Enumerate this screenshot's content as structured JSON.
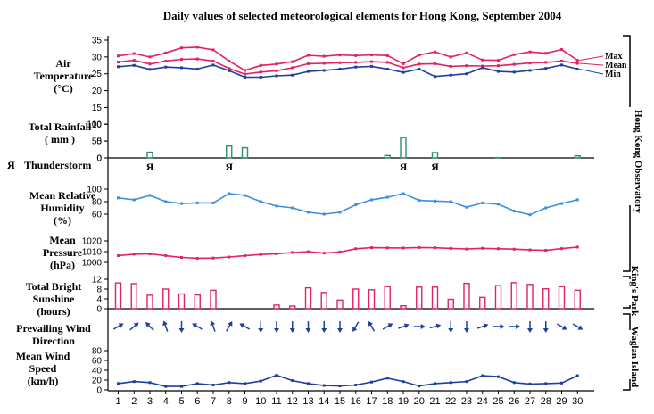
{
  "chart_data": {
    "type": "line",
    "title": "Daily values of selected meteorological elements for Hong Kong, September 2004",
    "x": [
      1,
      2,
      3,
      4,
      5,
      6,
      7,
      8,
      9,
      10,
      11,
      12,
      13,
      14,
      15,
      16,
      17,
      18,
      19,
      20,
      21,
      22,
      23,
      24,
      25,
      26,
      27,
      28,
      29,
      30
    ],
    "panels": {
      "air_temperature": {
        "label": [
          "Air",
          "Temperature",
          "(°C)"
        ],
        "ylim": [
          0,
          35
        ],
        "ticks": [
          0,
          5,
          10,
          15,
          20,
          25,
          30,
          35
        ],
        "series": [
          {
            "name": "Max",
            "color": "#e0245e",
            "values": [
              30.3,
              31.0,
              30.0,
              31.2,
              32.7,
              32.9,
              32.1,
              28.8,
              26.0,
              27.5,
              27.9,
              28.6,
              30.5,
              30.2,
              30.6,
              30.4,
              30.6,
              30.4,
              28.0,
              30.6,
              31.5,
              30.0,
              31.2,
              29.1,
              29.0,
              30.7,
              31.5,
              31.1,
              32.2,
              29.0
            ]
          },
          {
            "name": "Mean",
            "color": "#e0245e",
            "values": [
              28.5,
              29.0,
              27.9,
              28.8,
              29.3,
              29.4,
              28.8,
              26.6,
              24.9,
              25.5,
              25.9,
              26.8,
              28.0,
              28.1,
              28.3,
              28.4,
              28.6,
              28.4,
              26.8,
              27.9,
              28.0,
              27.2,
              27.4,
              27.3,
              27.4,
              27.8,
              28.2,
              28.4,
              28.8,
              28.1
            ]
          },
          {
            "name": "Min",
            "color": "#1f3f9f",
            "values": [
              27.1,
              27.5,
              26.3,
              27.0,
              26.8,
              26.4,
              27.6,
              25.9,
              24.0,
              24.0,
              24.4,
              24.6,
              25.7,
              26.0,
              26.4,
              27.0,
              27.2,
              26.4,
              25.4,
              26.4,
              24.2,
              24.6,
              25.0,
              26.8,
              25.7,
              25.5,
              26.0,
              26.6,
              27.6,
              26.4
            ]
          }
        ]
      },
      "total_rainfall": {
        "label": [
          "Total Rainfall",
          "( mm )"
        ],
        "ylim": [
          0,
          100
        ],
        "ticks": [
          0,
          50,
          100
        ],
        "color": "#2f8f6f",
        "values": [
          0,
          0,
          17,
          0,
          0,
          0,
          0,
          35,
          30,
          0,
          0,
          0,
          0,
          0,
          0,
          0,
          0,
          7,
          60,
          0,
          16,
          0,
          0,
          0,
          1,
          0,
          0,
          0,
          0,
          6
        ]
      },
      "thunderstorm": {
        "label": "Thunderstorm",
        "symbol": "Я",
        "days": [
          3,
          8,
          19,
          21
        ]
      },
      "mean_relative_humidity": {
        "label": [
          "Mean Relative",
          "Humidity",
          "(%)"
        ],
        "ylim": [
          0,
          100
        ],
        "ticks": [
          60,
          80,
          100
        ],
        "color": "#3a8fe0",
        "values": [
          86,
          83,
          90,
          80,
          77,
          78,
          78,
          93,
          90,
          80,
          73,
          70,
          63,
          60,
          63,
          75,
          83,
          87,
          93,
          82,
          81,
          80,
          71,
          78,
          76,
          65,
          59,
          70,
          77,
          83
        ]
      },
      "mean_pressure": {
        "label": [
          "Mean",
          "Pressure",
          "(hPa)"
        ],
        "ylim": [
          1000,
          1020
        ],
        "ticks": [
          1000,
          1010,
          1020
        ],
        "color": "#e0245e",
        "values": [
          1006.3,
          1007.6,
          1007.9,
          1006.2,
          1004.6,
          1003.8,
          1004.0,
          1005.0,
          1006.2,
          1007.3,
          1008.0,
          1009.2,
          1009.9,
          1008.6,
          1009.7,
          1012.7,
          1013.7,
          1013.5,
          1013.4,
          1013.8,
          1013.6,
          1013.0,
          1012.4,
          1013.1,
          1012.7,
          1012.3,
          1011.6,
          1011.2,
          1012.8,
          1014.2
        ]
      },
      "total_bright_sunshine": {
        "label": [
          "Total Bright",
          "Sunshine",
          "(hours)"
        ],
        "ylim": [
          0,
          12
        ],
        "ticks": [
          0,
          4,
          8,
          12
        ],
        "color": "#e0245e",
        "values": [
          10.5,
          10.2,
          5.5,
          8.0,
          6.0,
          5.6,
          7.5,
          0,
          0,
          0,
          1.5,
          1.1,
          8.5,
          6.6,
          3.5,
          8.0,
          7.7,
          9.0,
          1.2,
          8.8,
          8.8,
          3.8,
          10.3,
          4.6,
          9.4,
          10.6,
          9.9,
          8.1,
          9.0,
          7.5
        ]
      },
      "prevailing_wind_direction": {
        "label": [
          "Prevailing Wind",
          "Direction"
        ],
        "color": "#1f3f9f",
        "directions_deg": [
          240,
          230,
          135,
          160,
          0,
          120,
          160,
          210,
          120,
          0,
          0,
          0,
          0,
          0,
          0,
          30,
          150,
          240,
          250,
          270,
          255,
          0,
          0,
          250,
          270,
          270,
          0,
          0,
          300,
          300
        ]
      },
      "mean_wind_speed": {
        "label": [
          "Mean Wind",
          "Speed",
          "(km/h)"
        ],
        "ylim": [
          0,
          100
        ],
        "ticks": [
          0,
          20,
          40,
          60,
          80
        ],
        "color": "#1f3f9f",
        "values": [
          13,
          17,
          15,
          7,
          7,
          13,
          10,
          15,
          13,
          18,
          30,
          19,
          13,
          9,
          8,
          10,
          16,
          24,
          17,
          8,
          13,
          15,
          17,
          29,
          27,
          15,
          12,
          13,
          14,
          29
        ]
      }
    },
    "stations": [
      "Hong Kong Observatory",
      "King's Park",
      "Waglan Island"
    ]
  }
}
